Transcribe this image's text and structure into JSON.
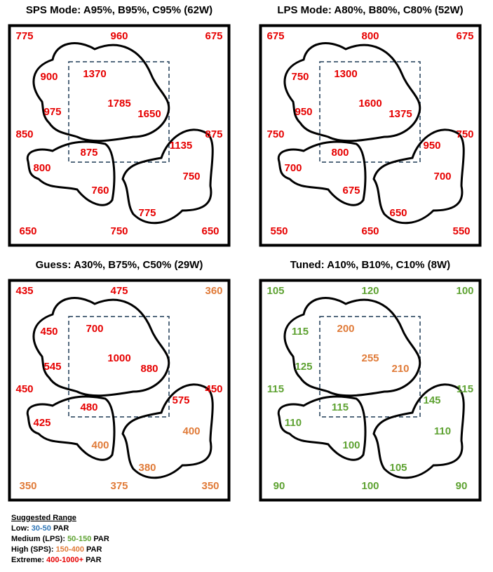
{
  "panels": [
    {
      "title": "SPS Mode: A95%, B95%, C95% (62W)",
      "readings": [
        {
          "value": 775,
          "color": "#e60000"
        },
        {
          "value": 960,
          "color": "#e60000"
        },
        {
          "value": 675,
          "color": "#e60000"
        },
        {
          "value": 900,
          "color": "#e60000"
        },
        {
          "value": 1370,
          "color": "#e60000"
        },
        {
          "value": 975,
          "color": "#e60000"
        },
        {
          "value": 1785,
          "color": "#e60000"
        },
        {
          "value": 1650,
          "color": "#e60000"
        },
        {
          "value": 850,
          "color": "#e60000"
        },
        {
          "value": 875,
          "color": "#e60000"
        },
        {
          "value": 875,
          "color": "#e60000"
        },
        {
          "value": 1135,
          "color": "#e60000"
        },
        {
          "value": 800,
          "color": "#e60000"
        },
        {
          "value": 760,
          "color": "#e60000"
        },
        {
          "value": 750,
          "color": "#e60000"
        },
        {
          "value": 775,
          "color": "#e60000"
        },
        {
          "value": 650,
          "color": "#e60000"
        },
        {
          "value": 750,
          "color": "#e60000"
        },
        {
          "value": 650,
          "color": "#e60000"
        }
      ]
    },
    {
      "title": "LPS Mode: A80%, B80%, C80% (52W)",
      "readings": [
        {
          "value": 675,
          "color": "#e60000"
        },
        {
          "value": 800,
          "color": "#e60000"
        },
        {
          "value": 675,
          "color": "#e60000"
        },
        {
          "value": 750,
          "color": "#e60000"
        },
        {
          "value": 1300,
          "color": "#e60000"
        },
        {
          "value": 950,
          "color": "#e60000"
        },
        {
          "value": 1600,
          "color": "#e60000"
        },
        {
          "value": 1375,
          "color": "#e60000"
        },
        {
          "value": 750,
          "color": "#e60000"
        },
        {
          "value": 750,
          "color": "#e60000"
        },
        {
          "value": 800,
          "color": "#e60000"
        },
        {
          "value": 950,
          "color": "#e60000"
        },
        {
          "value": 700,
          "color": "#e60000"
        },
        {
          "value": 675,
          "color": "#e60000"
        },
        {
          "value": 700,
          "color": "#e60000"
        },
        {
          "value": 650,
          "color": "#e60000"
        },
        {
          "value": 550,
          "color": "#e60000"
        },
        {
          "value": 650,
          "color": "#e60000"
        },
        {
          "value": 550,
          "color": "#e60000"
        }
      ]
    },
    {
      "title": "Guess: A30%, B75%, C50% (29W)",
      "readings": [
        {
          "value": 435,
          "color": "#e60000"
        },
        {
          "value": 475,
          "color": "#e60000"
        },
        {
          "value": 360,
          "color": "#e07b39"
        },
        {
          "value": 450,
          "color": "#e60000"
        },
        {
          "value": 700,
          "color": "#e60000"
        },
        {
          "value": 545,
          "color": "#e60000"
        },
        {
          "value": 1000,
          "color": "#e60000"
        },
        {
          "value": 880,
          "color": "#e60000"
        },
        {
          "value": 450,
          "color": "#e60000"
        },
        {
          "value": 450,
          "color": "#e60000"
        },
        {
          "value": 480,
          "color": "#e60000"
        },
        {
          "value": 575,
          "color": "#e60000"
        },
        {
          "value": 425,
          "color": "#e60000"
        },
        {
          "value": 400,
          "color": "#e07b39"
        },
        {
          "value": 400,
          "color": "#e07b39"
        },
        {
          "value": 380,
          "color": "#e07b39"
        },
        {
          "value": 350,
          "color": "#e07b39"
        },
        {
          "value": 375,
          "color": "#e07b39"
        },
        {
          "value": 350,
          "color": "#e07b39"
        }
      ]
    },
    {
      "title": "Tuned: A10%, B10%, C10% (8W)",
      "readings": [
        {
          "value": 105,
          "color": "#5ea232"
        },
        {
          "value": 120,
          "color": "#5ea232"
        },
        {
          "value": 100,
          "color": "#5ea232"
        },
        {
          "value": 115,
          "color": "#5ea232"
        },
        {
          "value": 200,
          "color": "#e07b39"
        },
        {
          "value": 125,
          "color": "#5ea232"
        },
        {
          "value": 255,
          "color": "#e07b39"
        },
        {
          "value": 210,
          "color": "#e07b39"
        },
        {
          "value": 115,
          "color": "#5ea232"
        },
        {
          "value": 115,
          "color": "#5ea232"
        },
        {
          "value": 115,
          "color": "#5ea232"
        },
        {
          "value": 145,
          "color": "#5ea232"
        },
        {
          "value": 110,
          "color": "#5ea232"
        },
        {
          "value": 100,
          "color": "#5ea232"
        },
        {
          "value": 110,
          "color": "#5ea232"
        },
        {
          "value": 105,
          "color": "#5ea232"
        },
        {
          "value": 90,
          "color": "#5ea232"
        },
        {
          "value": 100,
          "color": "#5ea232"
        },
        {
          "value": 90,
          "color": "#5ea232"
        }
      ]
    }
  ],
  "legend": {
    "title": "Suggested Range",
    "items": [
      {
        "label": "Low:",
        "range": "30-50",
        "unit": "PAR",
        "color": "#2e75b6"
      },
      {
        "label": "Medium (LPS):",
        "range": "50-150",
        "unit": "PAR",
        "color": "#5ea232"
      },
      {
        "label": "High (SPS):",
        "range": "150-400",
        "unit": "PAR",
        "color": "#e07b39"
      },
      {
        "label": "Extreme:",
        "range": "400-1000+",
        "unit": "PAR",
        "color": "#e60000"
      }
    ]
  }
}
